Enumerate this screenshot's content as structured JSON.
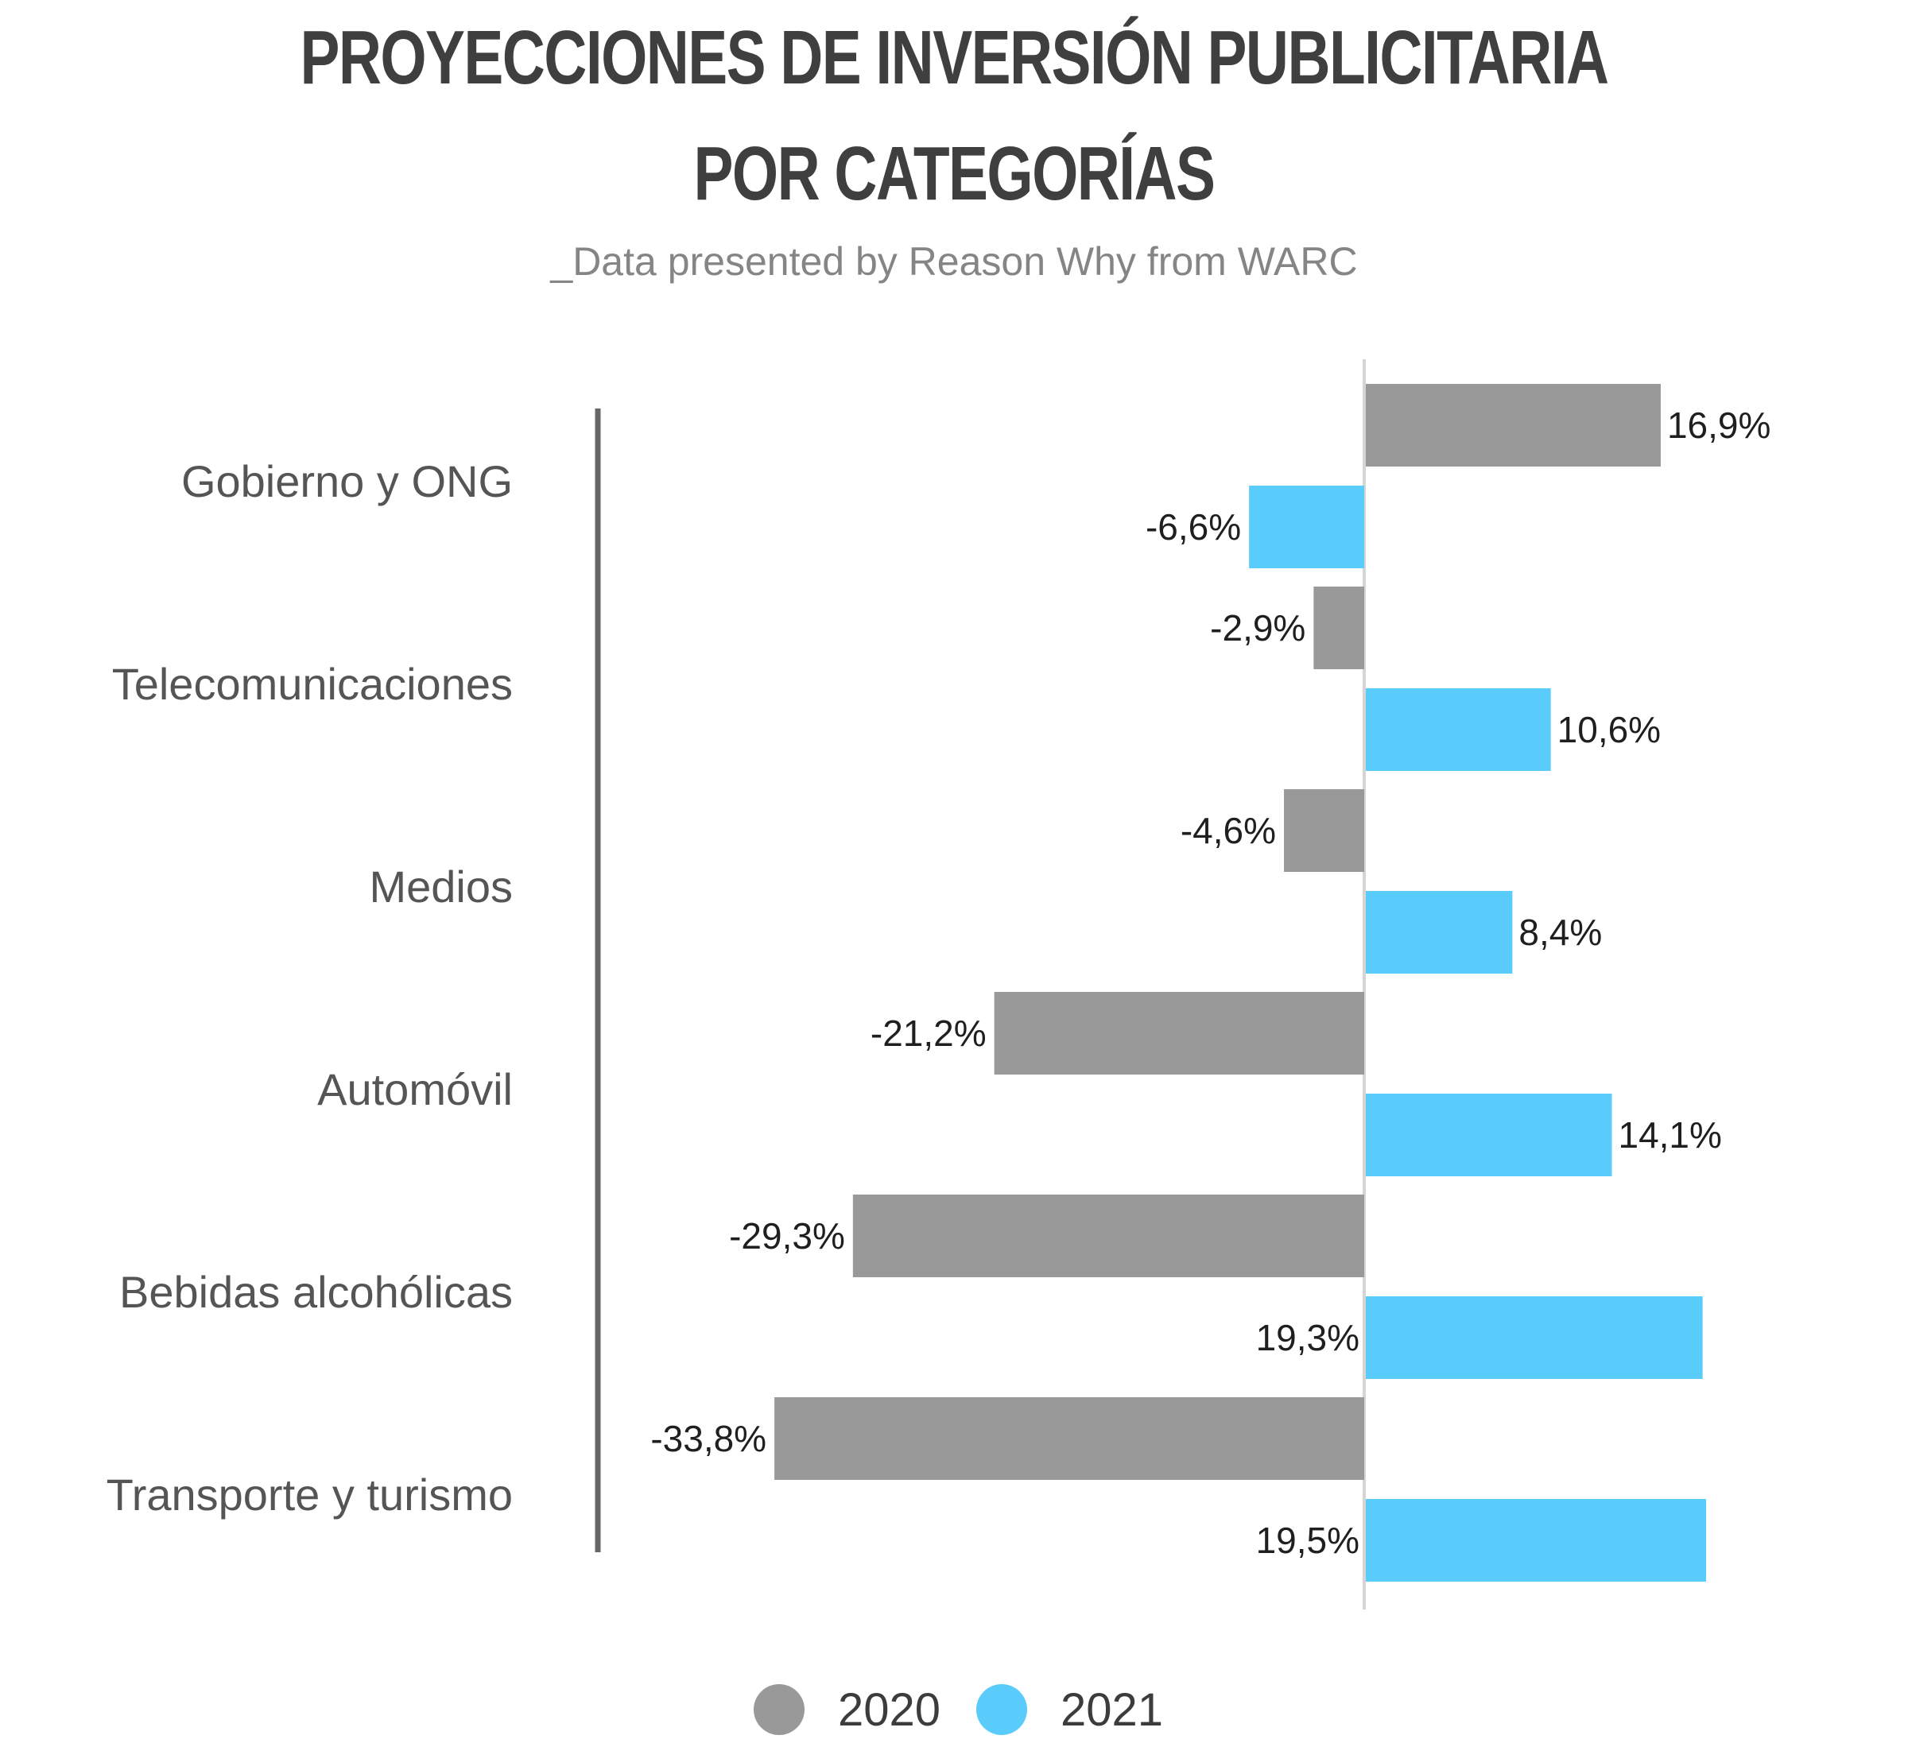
{
  "colors": {
    "series_2020": "#999999",
    "series_2021": "#59ccfb",
    "title": "#3f3f3f",
    "subtitle": "#858585"
  },
  "chart_data": {
    "type": "bar",
    "orientation": "horizontal",
    "title": "PROYECCIONES DE INVERSIÓN PUBLICITARIA POR CATEGORÍAS",
    "title_lines": [
      "PROYECCIONES DE INVERSIÓN PUBLICITARIA",
      "POR CATEGORÍAS"
    ],
    "subtitle": "_Data presented by Reason Why from WARC",
    "categories": [
      "Gobierno y ONG",
      "Telecomunicaciones",
      "Medios",
      "Automóvil",
      "Bebidas alcohólicas",
      "Transporte y turismo"
    ],
    "series": [
      {
        "name": "2020",
        "values": [
          16.9,
          -2.9,
          -4.6,
          -21.2,
          -29.3,
          -33.8
        ],
        "labels": [
          "16,9%",
          "-2,9%",
          "-4,6%",
          "-21,2%",
          "-29,3%",
          "-33,8%"
        ]
      },
      {
        "name": "2021",
        "values": [
          -6.6,
          10.6,
          8.4,
          14.1,
          19.3,
          19.5
        ],
        "labels": [
          "-6,6%",
          "10,6%",
          "8,4%",
          "14,1%",
          "19,3%",
          "19,5%"
        ]
      }
    ],
    "unit": "%",
    "xlim": [
      -40,
      20
    ],
    "grid": false,
    "legend_position": "bottom-center"
  }
}
